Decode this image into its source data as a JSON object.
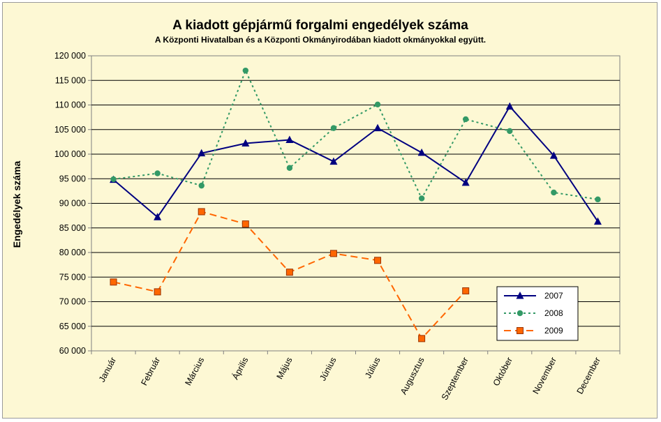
{
  "chart_data": {
    "type": "line",
    "title": "A  kiadott gépjármű forgalmi engedélyek száma",
    "subtitle": "A  Központi Hivatalban és a Központi Okmányirodában kiadott okmányokkal együtt.",
    "ylabel": "Engedélyek száma",
    "xlabel": "",
    "ylim": [
      60000,
      120000
    ],
    "y_ticks": [
      "60 000",
      "65 000",
      "70 000",
      "75 000",
      "80 000",
      "85 000",
      "90 000",
      "95 000",
      "100 000",
      "105 000",
      "110 000",
      "115 000",
      "120 000"
    ],
    "grid": true,
    "legend_position": "bottom-right",
    "categories": [
      "Január",
      "Február",
      "Március",
      "Április",
      "Május",
      "Június",
      "Július",
      "Augusztus",
      "Szeptember",
      "Október",
      "November",
      "December"
    ],
    "series": [
      {
        "name": "2007",
        "color": "#000080",
        "marker": "triangle",
        "dash": "solid",
        "values": [
          94800,
          87200,
          100200,
          102200,
          102900,
          98500,
          105300,
          100300,
          94200,
          109700,
          99700,
          86300
        ]
      },
      {
        "name": "2008",
        "color": "#339966",
        "marker": "circle",
        "dash": "dotted",
        "values": [
          94900,
          96100,
          93600,
          117000,
          97200,
          105300,
          110100,
          91000,
          107100,
          104700,
          92200,
          90800
        ]
      },
      {
        "name": "2009",
        "color": "#ff6600",
        "marker": "square",
        "dash": "dashed",
        "values": [
          74000,
          72000,
          88300,
          85800,
          76000,
          79800,
          78400,
          62500,
          72200,
          null,
          null,
          null
        ]
      }
    ]
  }
}
